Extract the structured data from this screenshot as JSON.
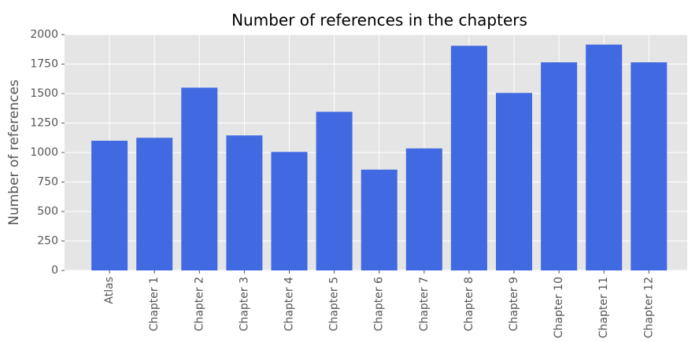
{
  "chart_data": {
    "type": "bar",
    "title": "Number of references in the chapters",
    "y_label": "Number of references",
    "categories": [
      "Atlas",
      "Chapter 1",
      "Chapter 2",
      "Chapter 3",
      "Chapter 4",
      "Chapter 5",
      "Chapter 6",
      "Chapter 7",
      "Chapter 8",
      "Chapter 9",
      "Chapter 10",
      "Chapter 11",
      "Chapter 12"
    ],
    "values": [
      1100,
      1125,
      1550,
      1145,
      1005,
      1345,
      855,
      1035,
      1905,
      1505,
      1765,
      1915,
      1765
    ],
    "color": "#4169e1",
    "ylim": [
      0,
      2000
    ],
    "yticks": [
      0,
      250,
      500,
      750,
      1000,
      1250,
      1500,
      1750,
      2000
    ],
    "grid": true
  }
}
